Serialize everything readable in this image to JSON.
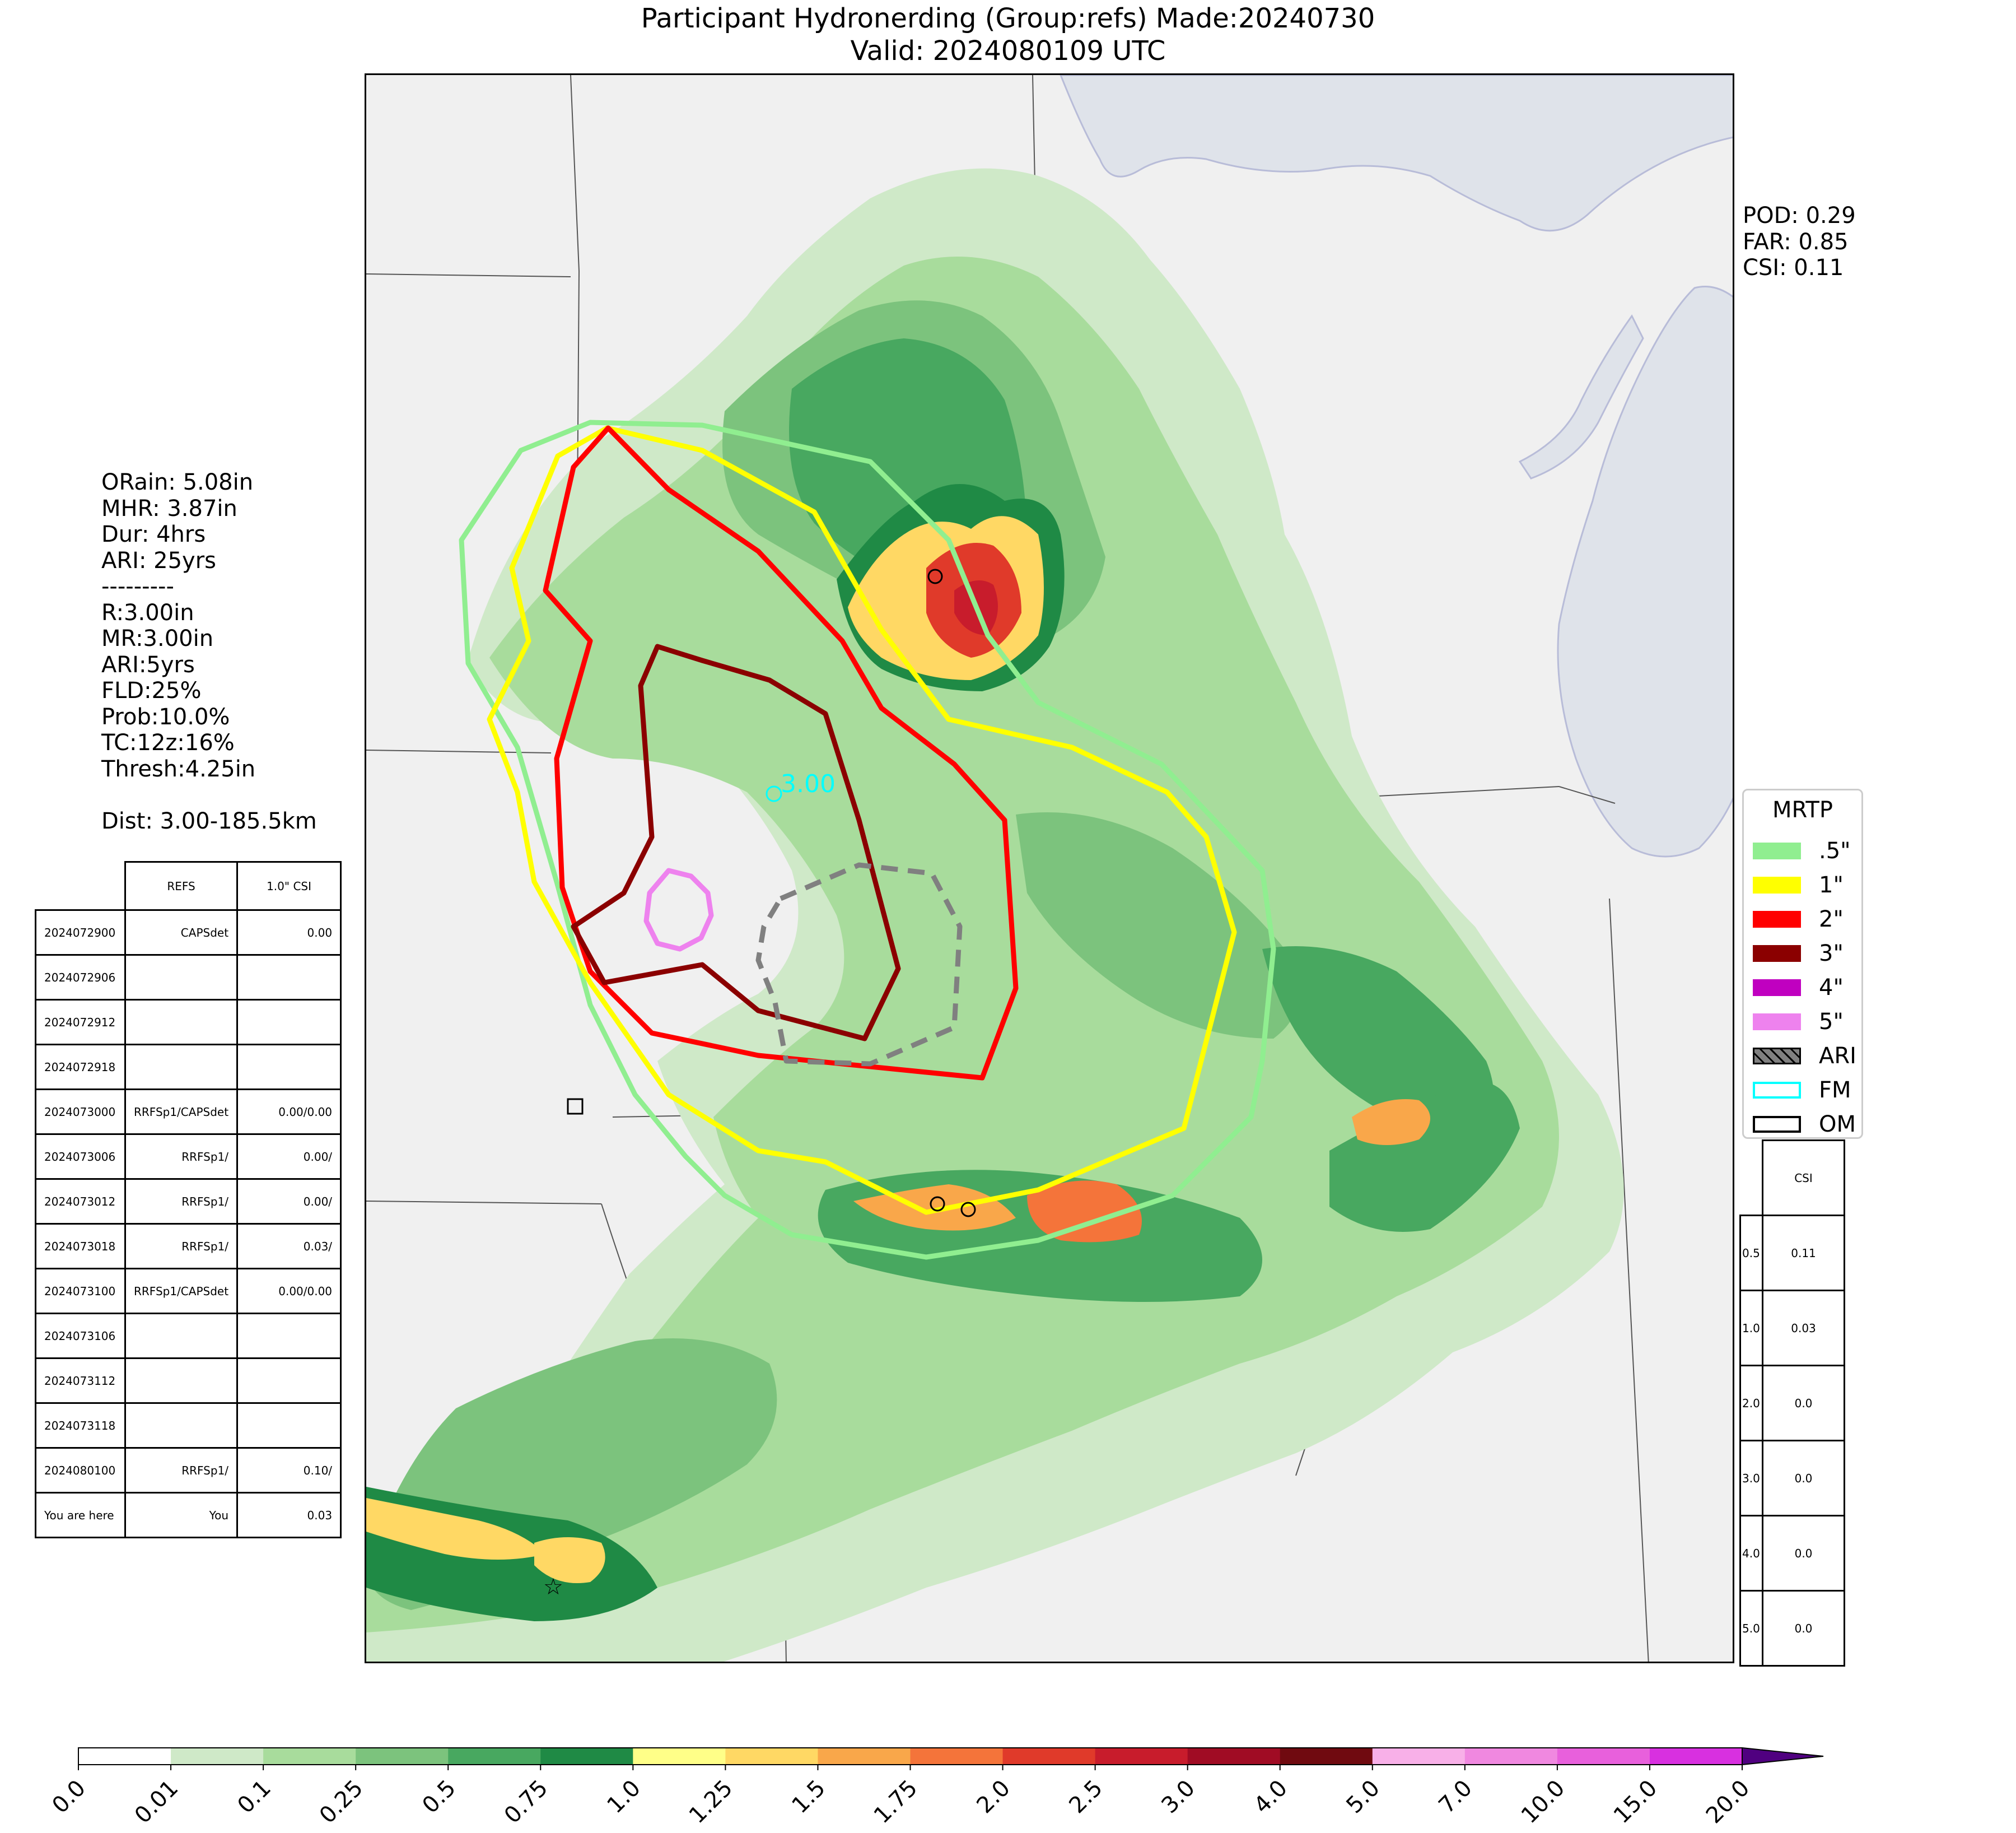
{
  "title": {
    "line1": "Participant Hydronerding (Group:refs) Made:20240730",
    "line2": "Valid: 2024080109 UTC"
  },
  "left_stats": [
    "ORain: 5.08in",
    "MHR: 3.87in",
    "Dur: 4hrs",
    "ARI: 25yrs",
    "---------",
    "R:3.00in",
    "MR:3.00in",
    "ARI:5yrs",
    "FLD:25%",
    "Prob:10.0%",
    "TC:12z:16%",
    "Thresh:4.25in",
    "",
    "Dist: 3.00-185.5km"
  ],
  "right_stats": [
    "POD: 0.29",
    "FAR: 0.85",
    "CSI: 0.11"
  ],
  "history_table": {
    "headers": [
      "",
      "REFS",
      "1.0\" CSI"
    ],
    "rows": [
      [
        "2024072900",
        "CAPSdet",
        "0.00"
      ],
      [
        "2024072906",
        "",
        ""
      ],
      [
        "2024072912",
        "",
        ""
      ],
      [
        "2024072918",
        "",
        ""
      ],
      [
        "2024073000",
        "RRFSp1/CAPSdet",
        "0.00/0.00"
      ],
      [
        "2024073006",
        "RRFSp1/",
        "0.00/"
      ],
      [
        "2024073012",
        "RRFSp1/",
        "0.00/"
      ],
      [
        "2024073018",
        "RRFSp1/",
        "0.03/"
      ],
      [
        "2024073100",
        "RRFSp1/CAPSdet",
        "0.00/0.00"
      ],
      [
        "2024073106",
        "",
        ""
      ],
      [
        "2024073112",
        "",
        ""
      ],
      [
        "2024073118",
        "",
        ""
      ],
      [
        "2024080100",
        "RRFSp1/",
        "0.10/"
      ],
      [
        "You are here",
        "You",
        "0.03"
      ]
    ]
  },
  "csi_table": {
    "header": "CSI",
    "rows": [
      [
        "0.5",
        "0.11"
      ],
      [
        "1.0",
        "0.03"
      ],
      [
        "2.0",
        "0.0"
      ],
      [
        "3.0",
        "0.0"
      ],
      [
        "4.0",
        "0.0"
      ],
      [
        "5.0",
        "0.0"
      ]
    ]
  },
  "legend": {
    "title": "MRTP",
    "items": [
      {
        "label": ".5\"",
        "color": "#90ee90",
        "kind": "fill"
      },
      {
        "label": "1\"",
        "color": "#ffff00",
        "kind": "fill"
      },
      {
        "label": "2\"",
        "color": "#ff0000",
        "kind": "fill"
      },
      {
        "label": "3\"",
        "color": "#8b0000",
        "kind": "fill"
      },
      {
        "label": "4\"",
        "color": "#c000c0",
        "kind": "fill"
      },
      {
        "label": "5\"",
        "color": "#ee82ee",
        "kind": "fill"
      },
      {
        "label": "ARI",
        "color": "#808080",
        "kind": "hatch"
      },
      {
        "label": "FM",
        "color": "#00ffff",
        "kind": "outline"
      },
      {
        "label": "OM",
        "color": "#000000",
        "kind": "outline"
      }
    ]
  },
  "map": {
    "label_value": "3.00",
    "label_color": "#00ffff",
    "contours": [
      {
        "level": ".5\"",
        "color": "#90ee90"
      },
      {
        "level": "1\"",
        "color": "#ffff00"
      },
      {
        "level": "2\"",
        "color": "#ff0000"
      },
      {
        "level": "3\"",
        "color": "#8b0000"
      },
      {
        "level": "5\"",
        "color": "#ee82ee"
      },
      {
        "level": "ARI",
        "color": "#808080"
      }
    ],
    "water_color": "#dfe3ea",
    "land_color": "#f0f0f0"
  },
  "colorbar": {
    "ticks": [
      "0.0",
      "0.01",
      "0.1",
      "0.25",
      "0.5",
      "0.75",
      "1.0",
      "1.25",
      "1.5",
      "1.75",
      "2.0",
      "2.5",
      "3.0",
      "4.0",
      "5.0",
      "7.0",
      "10.0",
      "15.0",
      "20.0"
    ],
    "colors": [
      "#ffffff",
      "#cfe9c8",
      "#a8dc9c",
      "#7cc37d",
      "#48a860",
      "#1f8a45",
      "#ffff88",
      "#ffd864",
      "#f9a74a",
      "#f4743a",
      "#e03a2a",
      "#c81c2c",
      "#a00c24",
      "#700a10",
      "#f8b0e8",
      "#f088e0",
      "#e860dc",
      "#d830e0",
      "#9010c0"
    ]
  }
}
